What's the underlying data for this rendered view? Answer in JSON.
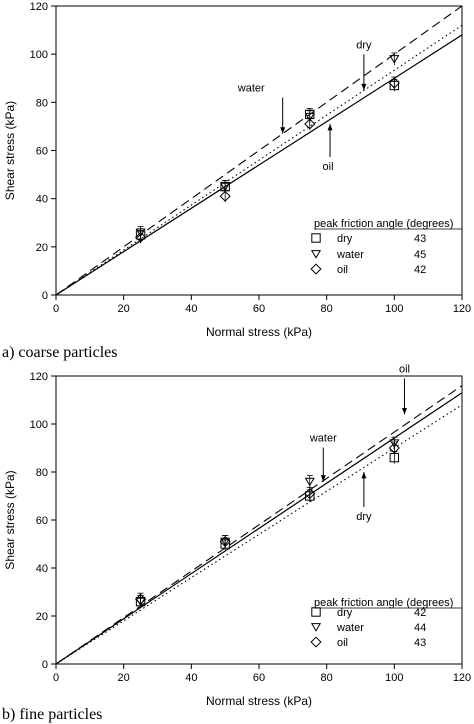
{
  "chart_data": [
    {
      "type": "scatter",
      "caption": "a) coarse particles",
      "xlabel": "Normal stress (kPa)",
      "ylabel": "Shear stress (kPa)",
      "xlim": [
        0,
        120
      ],
      "ylim": [
        0,
        120
      ],
      "xticks": [
        0,
        20,
        40,
        60,
        80,
        100,
        120
      ],
      "yticks": [
        0,
        20,
        40,
        60,
        80,
        100,
        120
      ],
      "legend_title": "peak friction angle (degrees)",
      "series": [
        {
          "name": "dry",
          "marker": "square",
          "line_style": "solid",
          "angle": "43",
          "x": [
            25,
            50,
            75,
            100
          ],
          "y": [
            25,
            45,
            75,
            87
          ]
        },
        {
          "name": "water",
          "marker": "triangle-down",
          "line_style": "dashed",
          "angle": "45",
          "x": [
            25,
            50,
            75,
            100
          ],
          "y": [
            26,
            45,
            74,
            98
          ]
        },
        {
          "name": "oil",
          "marker": "diamond",
          "line_style": "dotted",
          "angle": "42",
          "x": [
            25,
            50,
            75,
            100
          ],
          "y": [
            24,
            41,
            71,
            88
          ]
        }
      ],
      "fit_lines": [
        {
          "style": "solid",
          "x": [
            0,
            120
          ],
          "y": [
            0,
            108
          ]
        },
        {
          "style": "dashed",
          "x": [
            0,
            120
          ],
          "y": [
            0,
            120
          ]
        },
        {
          "style": "dotted",
          "x": [
            0,
            120
          ],
          "y": [
            0,
            112
          ]
        }
      ],
      "annotations": [
        {
          "text": "water",
          "x": 67,
          "y": 67
        },
        {
          "text": "dry",
          "x": 91,
          "y": 85
        },
        {
          "text": "oil",
          "x": 81,
          "y": 71
        }
      ]
    },
    {
      "type": "scatter",
      "caption": "b) fine particles",
      "xlabel": "Normal stress (kPa)",
      "ylabel": "Shear stress (kPa)",
      "xlim": [
        0,
        120
      ],
      "ylim": [
        0,
        120
      ],
      "xticks": [
        0,
        20,
        40,
        60,
        80,
        100,
        120
      ],
      "yticks": [
        0,
        20,
        40,
        60,
        80,
        100,
        120
      ],
      "legend_title": "peak friction angle (degrees)",
      "series": [
        {
          "name": "dry",
          "marker": "square",
          "line_style": "dotted",
          "angle": "42",
          "x": [
            25,
            50,
            75,
            100
          ],
          "y": [
            26,
            50,
            70,
            86
          ]
        },
        {
          "name": "water",
          "marker": "triangle-down",
          "line_style": "dashed",
          "angle": "44",
          "x": [
            25,
            50,
            75,
            100
          ],
          "y": [
            26,
            51,
            76,
            92
          ]
        },
        {
          "name": "oil",
          "marker": "diamond",
          "line_style": "solid",
          "angle": "43",
          "x": [
            25,
            50,
            75,
            100
          ],
          "y": [
            27,
            51,
            71,
            90
          ]
        }
      ],
      "fit_lines": [
        {
          "style": "dotted",
          "x": [
            0,
            120
          ],
          "y": [
            0,
            108
          ]
        },
        {
          "style": "dashed",
          "x": [
            0,
            120
          ],
          "y": [
            0,
            116
          ]
        },
        {
          "style": "solid",
          "x": [
            0,
            120
          ],
          "y": [
            0,
            113
          ]
        }
      ],
      "annotations": [
        {
          "text": "water",
          "x": 79,
          "y": 76
        },
        {
          "text": "dry",
          "x": 91,
          "y": 80
        },
        {
          "text": "oil",
          "x": 103,
          "y": 104
        }
      ]
    }
  ]
}
